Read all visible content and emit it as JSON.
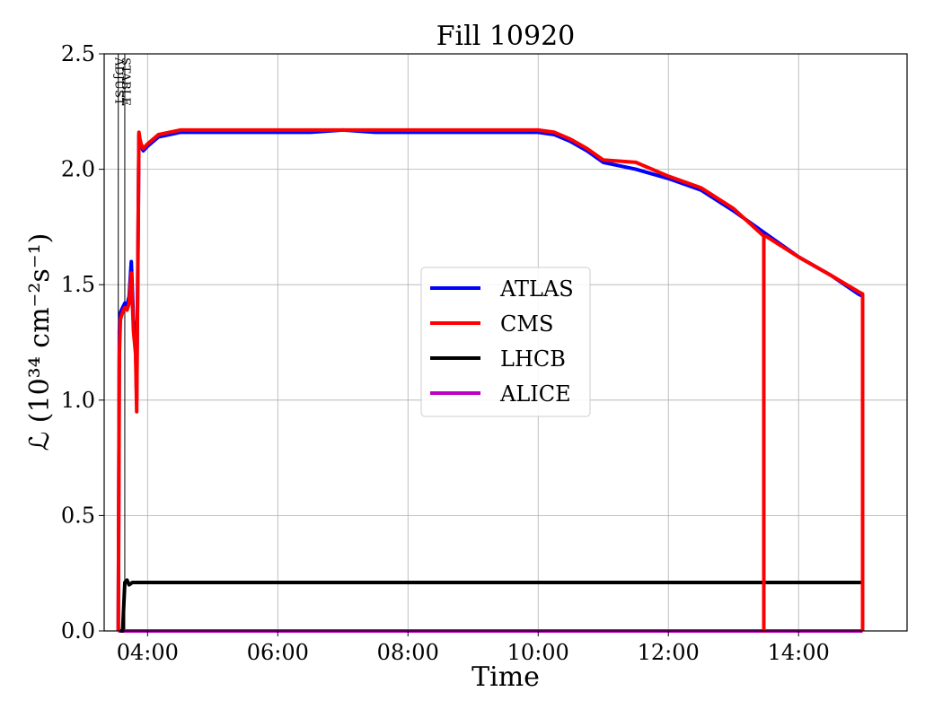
{
  "chart_data": {
    "type": "line",
    "title": "Fill 10920",
    "xlabel": "Time",
    "ylabel": "ℒ (10³⁴ cm⁻²s⁻¹)",
    "xlim": [
      "03:20",
      "15:40"
    ],
    "ylim": [
      0,
      2.5
    ],
    "grid": true,
    "legend_position": "center",
    "x_ticks": [
      "04:00",
      "06:00",
      "08:00",
      "10:00",
      "12:00",
      "14:00"
    ],
    "y_ticks": [
      "0.0",
      "0.5",
      "1.0",
      "1.5",
      "2.0",
      "2.5"
    ],
    "markers": [
      {
        "label": "ADJUST",
        "time": "03:33"
      },
      {
        "label": "STABLE",
        "time": "03:39"
      }
    ],
    "series": [
      {
        "name": "ATLAS",
        "color": "#0000ff",
        "x": [
          "03:33",
          "03:34",
          "03:35",
          "03:37",
          "03:39",
          "03:41",
          "03:43",
          "03:45",
          "03:47",
          "03:49",
          "03:50",
          "03:52",
          "03:53",
          "03:54",
          "03:56",
          "04:00",
          "04:05",
          "04:10",
          "04:20",
          "04:30",
          "05:00",
          "05:30",
          "06:00",
          "06:30",
          "07:00",
          "07:30",
          "08:00",
          "08:30",
          "09:00",
          "09:30",
          "10:00",
          "10:15",
          "10:30",
          "10:45",
          "11:00",
          "11:30",
          "12:00",
          "12:30",
          "13:00",
          "13:30",
          "14:00",
          "14:30",
          "14:55",
          "14:59",
          "14:59"
        ],
        "y": [
          0.0,
          1.3,
          1.38,
          1.4,
          1.42,
          1.41,
          1.45,
          1.6,
          1.35,
          1.25,
          1.0,
          2.15,
          2.12,
          2.1,
          2.08,
          2.1,
          2.12,
          2.14,
          2.15,
          2.16,
          2.16,
          2.16,
          2.16,
          2.16,
          2.17,
          2.16,
          2.16,
          2.16,
          2.16,
          2.16,
          2.16,
          2.15,
          2.12,
          2.08,
          2.03,
          2.0,
          1.96,
          1.91,
          1.82,
          1.72,
          1.62,
          1.54,
          1.46,
          1.45,
          0.0
        ]
      },
      {
        "name": "CMS",
        "color": "#ff0000",
        "x": [
          "03:33",
          "03:34",
          "03:35",
          "03:37",
          "03:39",
          "03:41",
          "03:43",
          "03:45",
          "03:47",
          "03:49",
          "03:50",
          "03:52",
          "03:53",
          "03:54",
          "03:56",
          "04:00",
          "04:05",
          "04:10",
          "04:20",
          "04:30",
          "05:00",
          "05:30",
          "06:00",
          "06:30",
          "07:00",
          "07:30",
          "08:00",
          "08:30",
          "09:00",
          "09:30",
          "10:00",
          "10:15",
          "10:30",
          "10:45",
          "11:00",
          "11:30",
          "12:00",
          "12:30",
          "13:00",
          "13:28",
          "13:28",
          "13:28",
          "13:30",
          "14:00",
          "14:30",
          "14:55",
          "14:59",
          "14:59"
        ],
        "y": [
          0.0,
          1.2,
          1.35,
          1.38,
          1.4,
          1.39,
          1.42,
          1.55,
          1.3,
          1.2,
          0.95,
          2.16,
          2.13,
          2.11,
          2.09,
          2.11,
          2.13,
          2.15,
          2.16,
          2.17,
          2.17,
          2.17,
          2.17,
          2.17,
          2.17,
          2.17,
          2.17,
          2.17,
          2.17,
          2.17,
          2.17,
          2.16,
          2.13,
          2.09,
          2.04,
          2.03,
          1.97,
          1.92,
          1.83,
          1.71,
          0.0,
          1.71,
          1.71,
          1.62,
          1.54,
          1.47,
          1.46,
          0.0
        ]
      },
      {
        "name": "LHCB",
        "color": "#000000",
        "x": [
          "03:35",
          "03:37",
          "03:39",
          "03:41",
          "03:43",
          "03:46",
          "04:00",
          "06:00",
          "08:00",
          "10:00",
          "12:00",
          "14:00",
          "14:59",
          "14:59"
        ],
        "y": [
          0.0,
          0.0,
          0.21,
          0.22,
          0.2,
          0.21,
          0.21,
          0.21,
          0.21,
          0.21,
          0.21,
          0.21,
          0.21,
          0.0
        ]
      },
      {
        "name": "ALICE",
        "color": "#c000c0",
        "x": [
          "03:33",
          "14:59"
        ],
        "y": [
          0.0,
          0.0
        ]
      }
    ]
  }
}
